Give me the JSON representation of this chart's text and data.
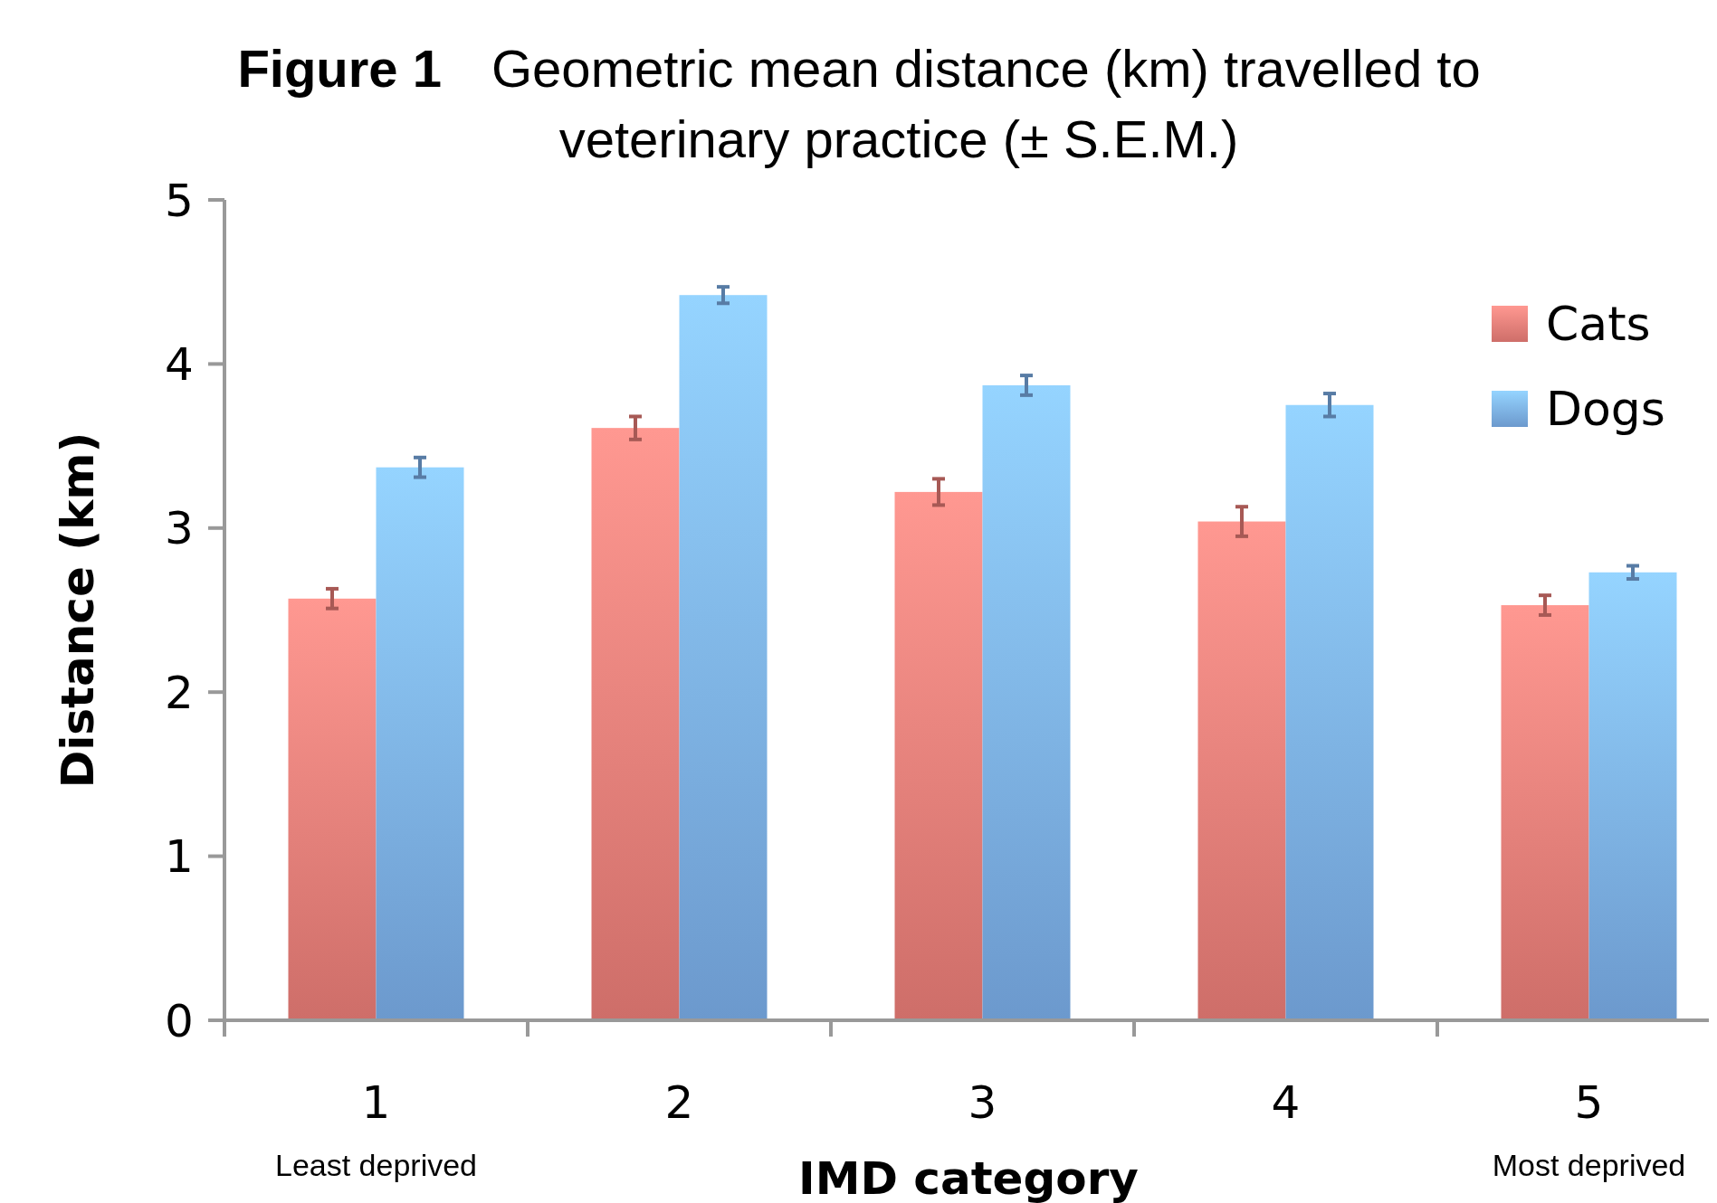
{
  "chart_data": {
    "type": "bar",
    "title": "Figure 1",
    "subtitle": "Geometric mean distance (km) travelled to veterinary practice (± S.E.M.)",
    "xlabel": "IMD category",
    "ylabel": "Distance (km)",
    "categories": [
      "1",
      "2",
      "3",
      "4",
      "5"
    ],
    "series": [
      {
        "name": "Cats",
        "color": "#ee7f79",
        "values": [
          2.57,
          3.61,
          3.22,
          3.04,
          2.53
        ],
        "errors": [
          0.06,
          0.07,
          0.08,
          0.09,
          0.06
        ]
      },
      {
        "name": "Dogs",
        "color": "#7db1ec",
        "values": [
          3.37,
          4.42,
          3.87,
          3.75,
          2.73
        ],
        "errors": [
          0.06,
          0.05,
          0.06,
          0.07,
          0.04
        ]
      }
    ],
    "ylim": [
      0,
      5
    ],
    "yticks": [
      0,
      1,
      2,
      3,
      4,
      5
    ],
    "legend": "top right",
    "grid": false,
    "annotations": [
      "Least deprived",
      "Most deprived"
    ]
  }
}
